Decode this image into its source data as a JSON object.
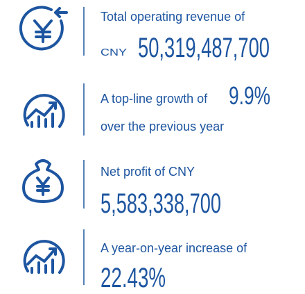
{
  "rows": [
    {
      "text": "Total operating revenue of",
      "unit": "CNY",
      "figure": "50,319,487,700"
    },
    {
      "text": "A top-line growth of",
      "figure": "9.9%",
      "text2": "over the previous year"
    },
    {
      "text": "Net profit of CNY",
      "figure": "5,583,338,700"
    },
    {
      "text": "A year-on-year increase of",
      "figure": "22.43%"
    }
  ]
}
